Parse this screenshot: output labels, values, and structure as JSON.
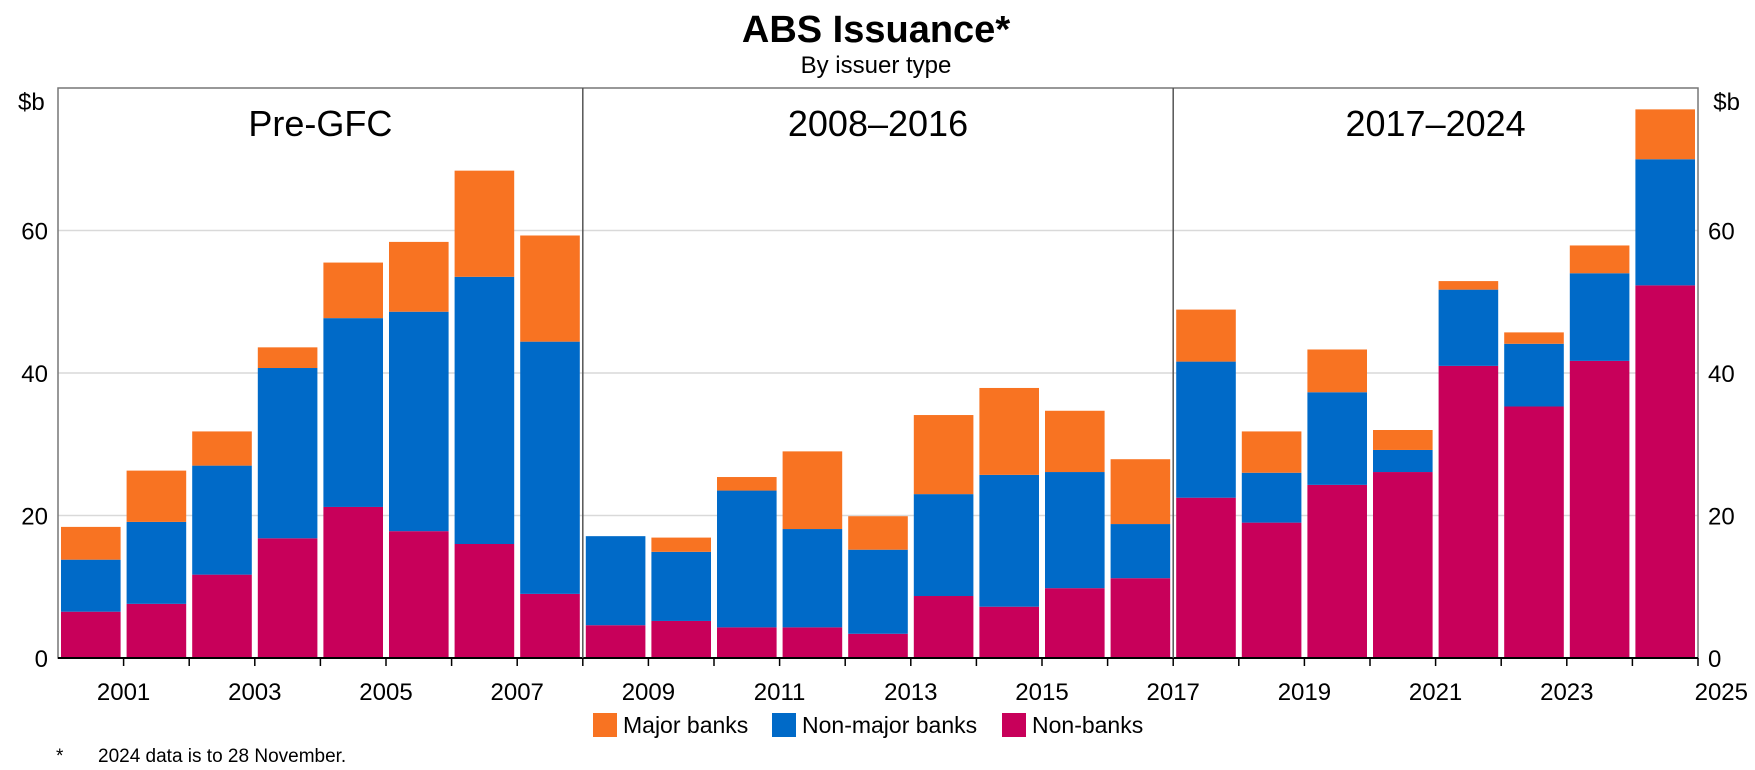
{
  "chart_data": {
    "type": "bar",
    "stacked": true,
    "title": "ABS Issuance*",
    "subtitle": "By issuer type",
    "ylabel_left": "$b",
    "ylabel_right": "$b",
    "ylim": [
      0,
      80
    ],
    "yticks": [
      0,
      20,
      40,
      60
    ],
    "grid": true,
    "categories": [
      "2000",
      "2001",
      "2002",
      "2003",
      "2004",
      "2005",
      "2006",
      "2007",
      "2008",
      "2009",
      "2010",
      "2011",
      "2012",
      "2013",
      "2014",
      "2015",
      "2016",
      "2017",
      "2018",
      "2019",
      "2020",
      "2021",
      "2022",
      "2023",
      "2024"
    ],
    "xtick_labels": [
      "2001",
      "2003",
      "2005",
      "2007",
      "2009",
      "2011",
      "2013",
      "2015",
      "2017",
      "2019",
      "2021",
      "2023",
      "2025"
    ],
    "periods": [
      {
        "label": "Pre-GFC",
        "start": "2000",
        "end": "2007"
      },
      {
        "label": "2008–2016",
        "start": "2008",
        "end": "2016"
      },
      {
        "label": "2017–2024",
        "start": "2017",
        "end": "2024"
      }
    ],
    "series": [
      {
        "name": "Non-banks",
        "color": "#c8005a",
        "values": [
          6.5,
          7.6,
          11.7,
          16.8,
          21.2,
          17.8,
          16.0,
          9.0,
          4.6,
          5.2,
          4.3,
          4.3,
          3.4,
          8.7,
          7.2,
          9.8,
          11.2,
          22.5,
          19.0,
          24.3,
          26.1,
          41.0,
          35.3,
          41.7,
          52.3
        ]
      },
      {
        "name": "Non-major banks",
        "color": "#006ac8",
        "values": [
          7.3,
          11.5,
          15.3,
          23.9,
          26.5,
          30.8,
          37.5,
          35.4,
          12.5,
          9.7,
          19.2,
          13.8,
          11.8,
          14.3,
          18.5,
          16.3,
          7.6,
          19.1,
          7.0,
          13.0,
          3.1,
          10.7,
          8.8,
          12.3,
          17.7
        ]
      },
      {
        "name": "Major banks",
        "color": "#f87322",
        "values": [
          4.6,
          7.2,
          4.8,
          2.9,
          7.8,
          9.8,
          14.9,
          14.9,
          0.0,
          2.0,
          1.9,
          10.9,
          4.7,
          11.1,
          12.2,
          8.6,
          9.1,
          7.3,
          5.8,
          6.0,
          2.8,
          1.2,
          1.6,
          3.9,
          7.0
        ]
      }
    ],
    "legend": [
      "Major banks",
      "Non-major banks",
      "Non-banks"
    ],
    "legend_position": "bottom"
  },
  "footnote": {
    "marker": "*",
    "text": "2024 data is to 28 November."
  }
}
